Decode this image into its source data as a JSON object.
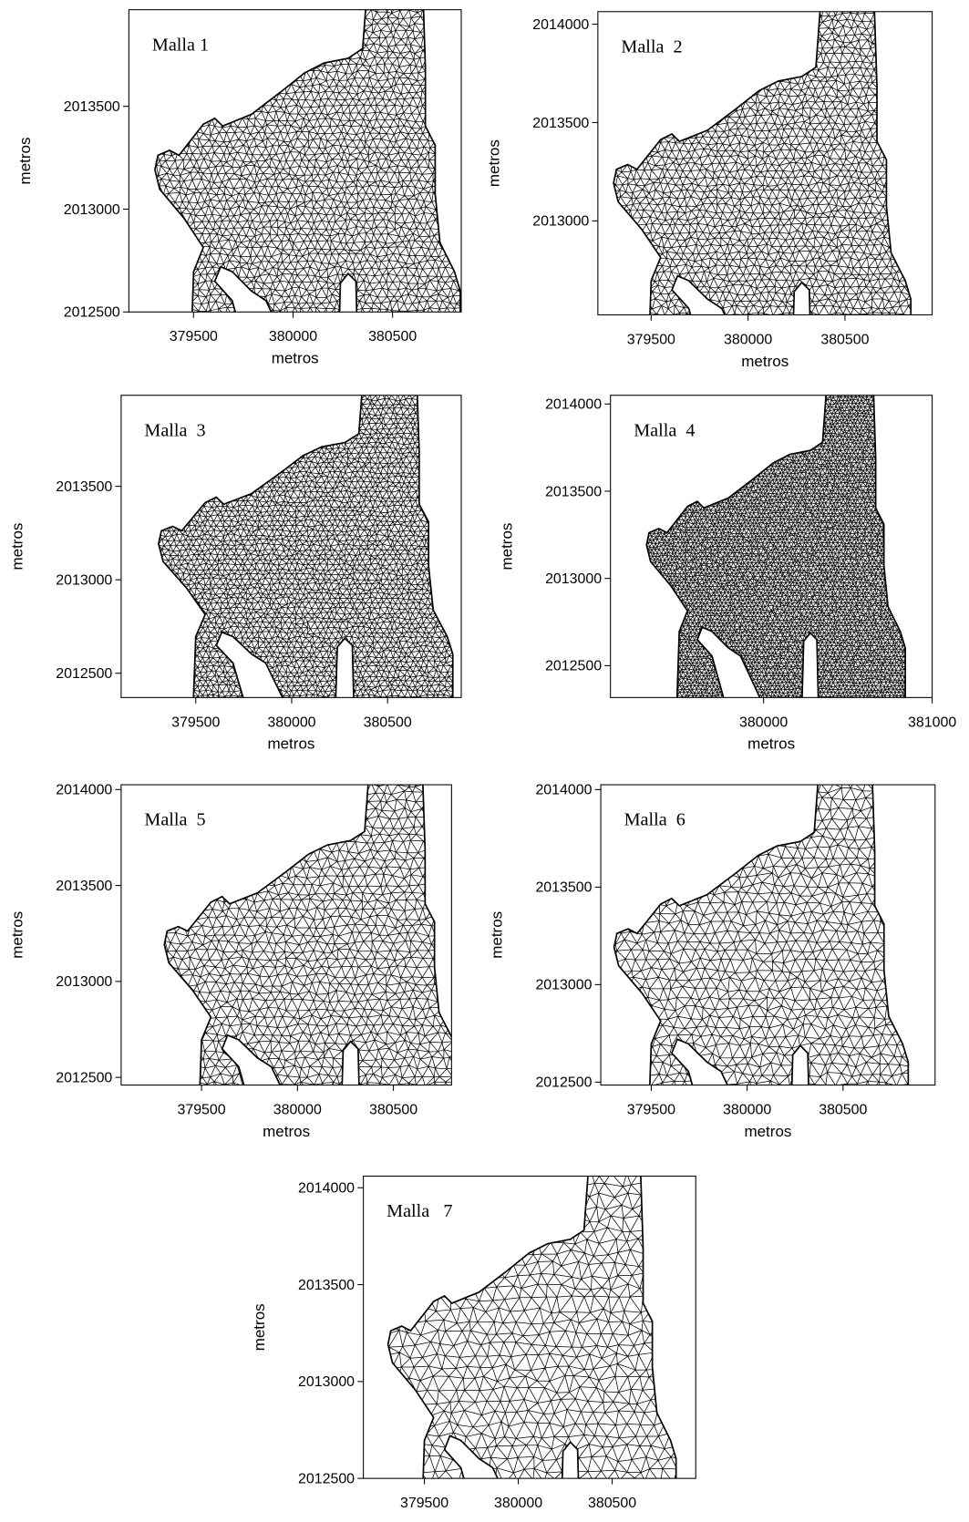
{
  "chart_data": [
    {
      "type": "mesh",
      "title": "Malla 1",
      "xlabel": "metros",
      "ylabel": "metros",
      "xlim": [
        379175,
        380845
      ],
      "ylim": [
        2012500,
        2013970
      ],
      "xticks": [
        379500,
        380000,
        380500
      ],
      "yticks": [
        2012500,
        2013000,
        2013500
      ]
    },
    {
      "type": "mesh",
      "title": "Malla  2",
      "xlabel": "metros",
      "ylabel": "metros",
      "xlim": [
        379225,
        380950
      ],
      "ylim": [
        2012522,
        2014064
      ],
      "xticks": [
        379500,
        380000,
        380500
      ],
      "yticks": [
        2013000,
        2013500,
        2014000
      ]
    },
    {
      "type": "mesh",
      "title": "Malla  3",
      "xlabel": "metros",
      "ylabel": "metros",
      "xlim": [
        379111,
        380884
      ],
      "ylim": [
        2012370,
        2013987
      ],
      "xticks": [
        379500,
        380000,
        380500
      ],
      "yticks": [
        2012500,
        2013000,
        2013500
      ]
    },
    {
      "type": "mesh",
      "title": "Malla  4",
      "xlabel": "metros",
      "ylabel": "metros",
      "xlim": [
        379092,
        381000
      ],
      "ylim": [
        2012317,
        2014050
      ],
      "xticks": [
        380000,
        381000
      ],
      "yticks": [
        2012500,
        2013000,
        2013500,
        2014000
      ]
    },
    {
      "type": "mesh",
      "title": "Malla  5",
      "xlabel": "metros",
      "ylabel": "metros",
      "xlim": [
        379081,
        380803
      ],
      "ylim": [
        2012460,
        2014025
      ],
      "xticks": [
        379500,
        380000,
        380500
      ],
      "yticks": [
        2012500,
        2013000,
        2013500,
        2014000
      ]
    },
    {
      "type": "mesh",
      "title": "Malla  6",
      "xlabel": "metros",
      "ylabel": "metros",
      "xlim": [
        379237,
        380980
      ],
      "ylim": [
        2012485,
        2014025
      ],
      "xticks": [
        379500,
        380000,
        380500
      ],
      "yticks": [
        2012500,
        2013000,
        2013500,
        2014000
      ]
    },
    {
      "type": "mesh",
      "title": "Malla   7",
      "ylabel": "metros",
      "xlim": [
        379175,
        380945
      ],
      "ylim": [
        2012500,
        2014060
      ],
      "xticks": [
        379500,
        380000,
        380500
      ],
      "yticks": [
        2012500,
        2013000,
        2013500,
        2014000
      ]
    }
  ]
}
